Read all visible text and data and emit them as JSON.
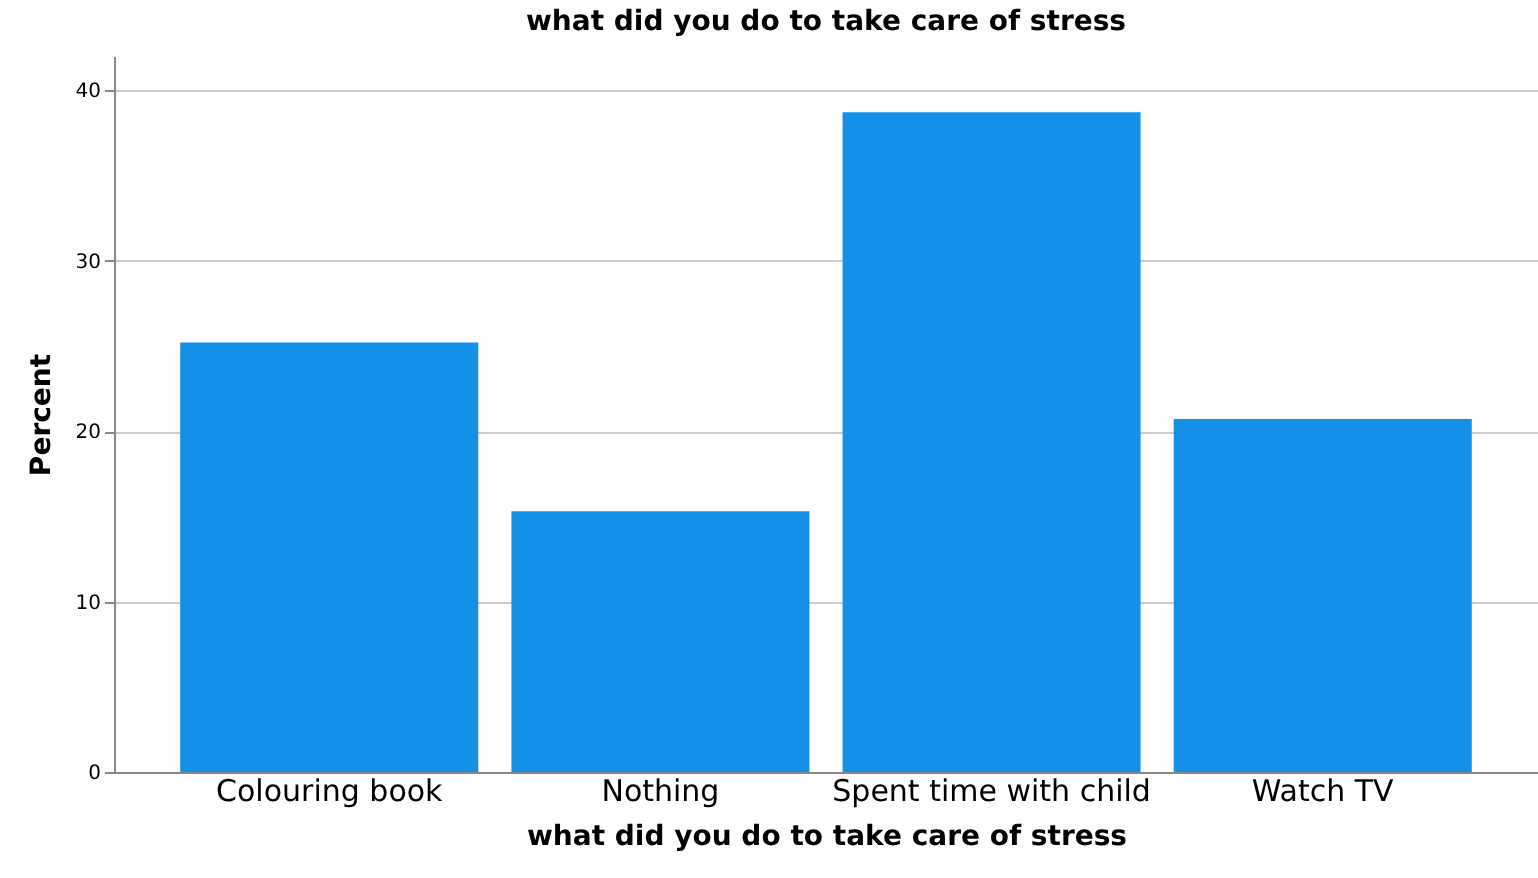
{
  "chart_data": {
    "type": "bar",
    "title": "what did you do to take care of stress",
    "xlabel": "what did you do to take care of stress",
    "ylabel": "Percent",
    "categories": [
      "Colouring book",
      "Nothing",
      "Spent time with child",
      "Watch TV"
    ],
    "values": [
      25.2,
      15.3,
      38.7,
      20.7
    ],
    "color": "#1490e6",
    "ylim": [
      0,
      42
    ],
    "yticks": [
      0,
      10,
      20,
      30,
      40
    ],
    "grid": "y"
  }
}
